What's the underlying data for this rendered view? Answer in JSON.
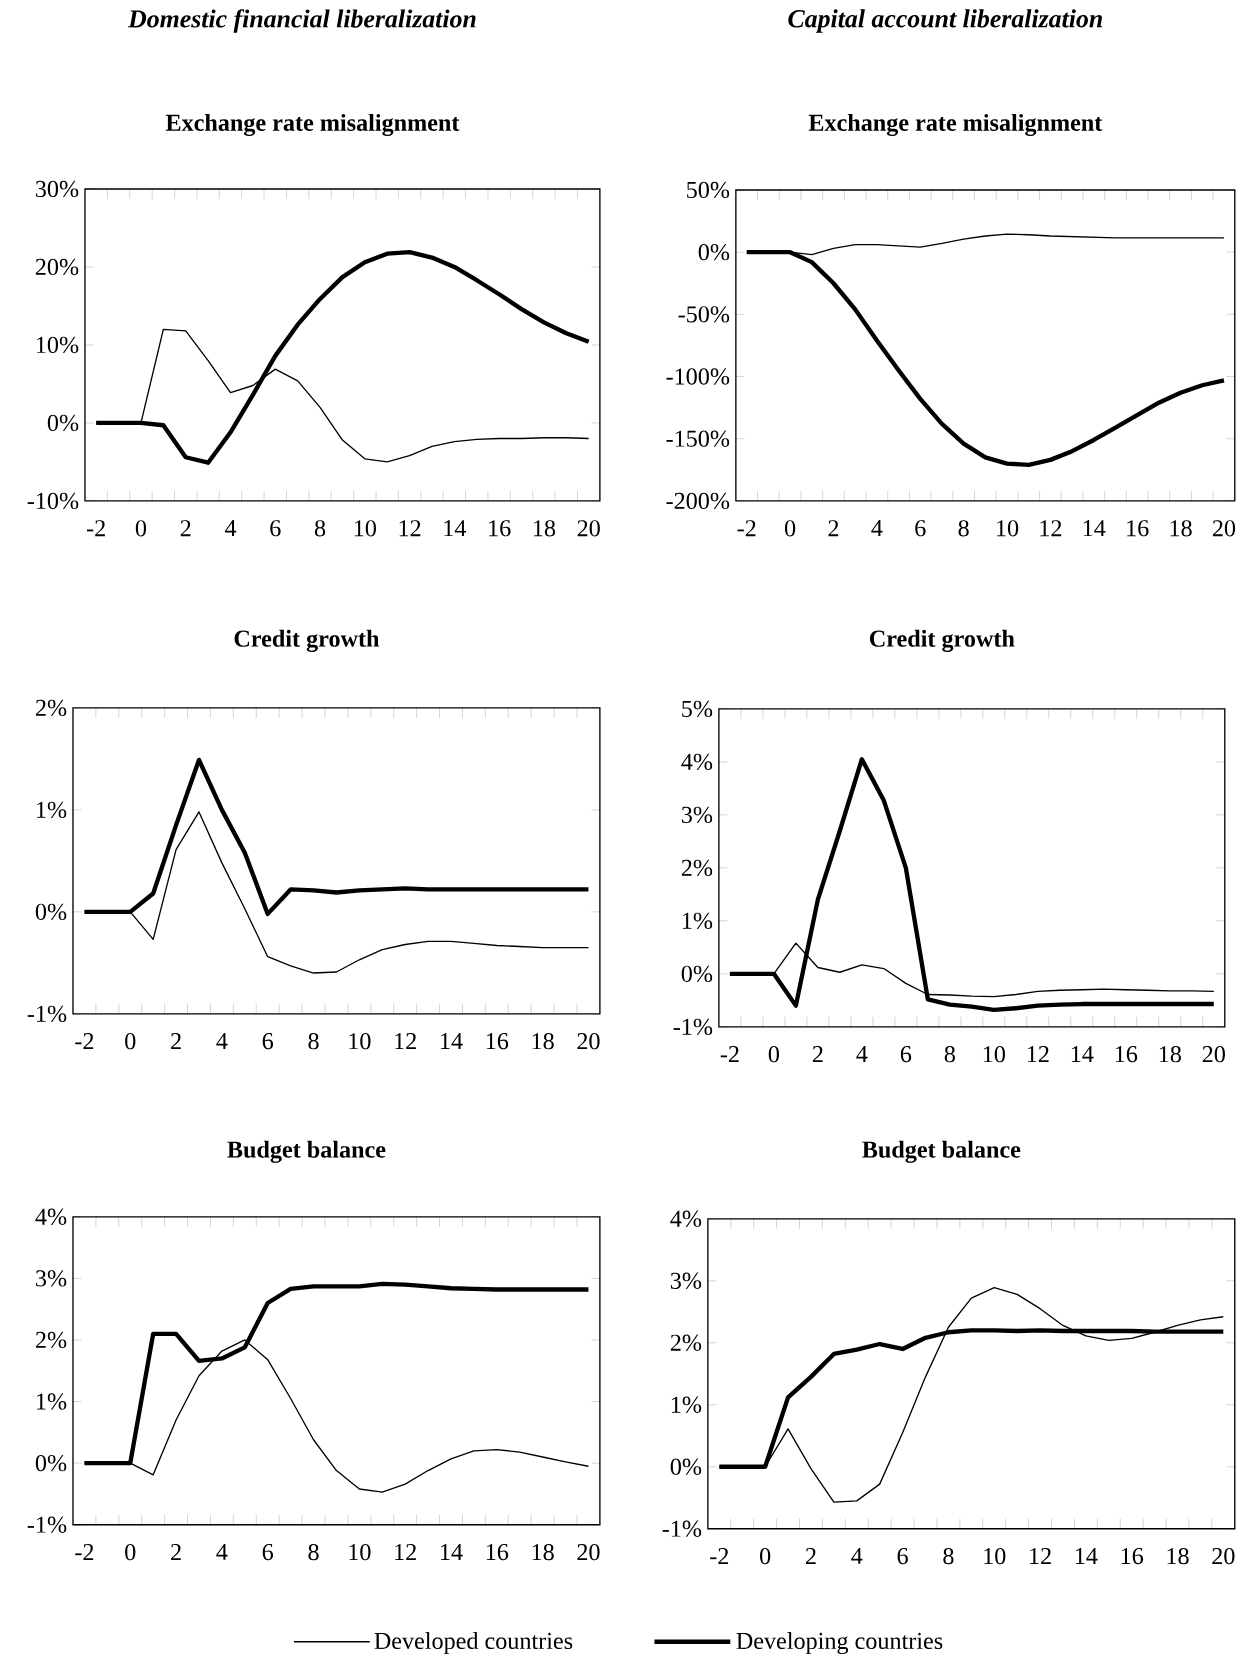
{
  "chart_data": [
    {
      "type": "line",
      "subtitle": "Domestic financial liberalization",
      "title": "Exchange rate misalignment",
      "categories": [
        "-2",
        null,
        "0",
        null,
        "2",
        null,
        "4",
        null,
        "6",
        null,
        "8",
        null,
        "10",
        null,
        "12",
        null,
        "14",
        null,
        "16",
        null,
        "18",
        null,
        "20"
      ],
      "ylim": [
        -10,
        30
      ],
      "yticks": [
        {
          "value": -10,
          "label": "-10%"
        },
        {
          "value": 0,
          "label": "0%"
        },
        {
          "value": 10,
          "label": "10%"
        },
        {
          "value": 20,
          "label": "20%"
        },
        {
          "value": 30,
          "label": "30%"
        }
      ],
      "series": [
        {
          "color": "#000000",
          "values": [
            0,
            0,
            0,
            12.0,
            11.8,
            8.0,
            3.9,
            4.8,
            6.9,
            5.4,
            2.0,
            -2.2,
            -4.6,
            -5.0,
            -4.2,
            -3.0,
            -2.4,
            -2.1,
            -2.0,
            -2.0,
            -1.9,
            -1.9,
            -2.0
          ]
        },
        {
          "color": "#000000",
          "values": [
            0,
            0,
            0,
            -0.3,
            -4.4,
            -5.1,
            -1.2,
            3.6,
            8.6,
            12.6,
            15.9,
            18.7,
            20.6,
            21.7,
            21.9,
            21.2,
            20.0,
            18.3,
            16.5,
            14.6,
            12.9,
            11.5,
            10.4
          ]
        }
      ]
    },
    {
      "type": "line",
      "subtitle": "Capital account liberalization",
      "title": "Exchange rate misalignment",
      "categories": [
        "-2",
        null,
        "0",
        null,
        "2",
        null,
        "4",
        null,
        "6",
        null,
        "8",
        null,
        "10",
        null,
        "12",
        null,
        "14",
        null,
        "16",
        null,
        "18",
        null,
        "20"
      ],
      "ylim": [
        -200,
        50
      ],
      "yticks": [
        {
          "value": -200,
          "label": "-200%"
        },
        {
          "value": -150,
          "label": "-150%"
        },
        {
          "value": -100,
          "label": "-100%"
        },
        {
          "value": -50,
          "label": "-50%"
        },
        {
          "value": 0,
          "label": "0%"
        },
        {
          "value": 50,
          "label": "50%"
        }
      ],
      "series": [
        {
          "color": "#000000",
          "values": [
            0,
            0,
            0,
            -2,
            3,
            6,
            6,
            5,
            4,
            7,
            10.5,
            13,
            14.5,
            14,
            13,
            12.5,
            12,
            11.5,
            11.5,
            11.5,
            11.5,
            11.5,
            11.5
          ]
        },
        {
          "color": "#000000",
          "values": [
            0,
            0,
            0,
            -8,
            -25,
            -46,
            -71,
            -95,
            -118,
            -138,
            -154,
            -165,
            -170,
            -171,
            -167,
            -160,
            -151,
            -141,
            -131,
            -121,
            -113,
            -107,
            -103
          ]
        }
      ]
    },
    {
      "type": "line",
      "title": "Credit growth",
      "categories": [
        "-2",
        null,
        "0",
        null,
        "2",
        null,
        "4",
        null,
        "6",
        null,
        "8",
        null,
        "10",
        null,
        "12",
        null,
        "14",
        null,
        "16",
        null,
        "18",
        null,
        "20"
      ],
      "ylim": [
        -1,
        2
      ],
      "yticks": [
        {
          "value": -1,
          "label": "-1%"
        },
        {
          "value": 0,
          "label": "0%"
        },
        {
          "value": 1,
          "label": "1%"
        },
        {
          "value": 2,
          "label": "2%"
        }
      ],
      "series": [
        {
          "color": "#000000",
          "values": [
            0,
            0,
            0,
            -0.27,
            0.61,
            0.98,
            0.48,
            0.03,
            -0.44,
            -0.53,
            -0.6,
            -0.59,
            -0.47,
            -0.37,
            -0.32,
            -0.29,
            -0.29,
            -0.31,
            -0.33,
            -0.34,
            -0.35,
            -0.35,
            -0.35
          ]
        },
        {
          "color": "#000000",
          "values": [
            0,
            0,
            0,
            0.18,
            0.85,
            1.49,
            1.0,
            0.58,
            -0.02,
            0.22,
            0.21,
            0.19,
            0.21,
            0.22,
            0.23,
            0.22,
            0.22,
            0.22,
            0.22,
            0.22,
            0.22,
            0.22,
            0.22
          ]
        }
      ]
    },
    {
      "type": "line",
      "title": "Credit growth",
      "categories": [
        "-2",
        null,
        "0",
        null,
        "2",
        null,
        "4",
        null,
        "6",
        null,
        "8",
        null,
        "10",
        null,
        "12",
        null,
        "14",
        null,
        "16",
        null,
        "18",
        null,
        "20"
      ],
      "ylim": [
        -1,
        5
      ],
      "yticks": [
        {
          "value": -1,
          "label": "-1%"
        },
        {
          "value": 0,
          "label": "0%"
        },
        {
          "value": 1,
          "label": "1%"
        },
        {
          "value": 2,
          "label": "2%"
        },
        {
          "value": 3,
          "label": "3%"
        },
        {
          "value": 4,
          "label": "4%"
        },
        {
          "value": 5,
          "label": "5%"
        }
      ],
      "series": [
        {
          "color": "#000000",
          "values": [
            0,
            0,
            0,
            0.58,
            0.12,
            0.03,
            0.17,
            0.1,
            -0.18,
            -0.39,
            -0.4,
            -0.42,
            -0.43,
            -0.39,
            -0.33,
            -0.31,
            -0.3,
            -0.29,
            -0.3,
            -0.31,
            -0.32,
            -0.32,
            -0.33
          ]
        },
        {
          "color": "#000000",
          "values": [
            0,
            0,
            0,
            -0.6,
            1.4,
            2.7,
            4.05,
            3.27,
            2.0,
            -0.48,
            -0.58,
            -0.62,
            -0.68,
            -0.65,
            -0.6,
            -0.58,
            -0.57,
            -0.57,
            -0.57,
            -0.57,
            -0.57,
            -0.57,
            -0.57
          ]
        }
      ]
    },
    {
      "type": "line",
      "title": "Budget balance",
      "categories": [
        "-2",
        null,
        "0",
        null,
        "2",
        null,
        "4",
        null,
        "6",
        null,
        "8",
        null,
        "10",
        null,
        "12",
        null,
        "14",
        null,
        "16",
        null,
        "18",
        null,
        "20"
      ],
      "ylim": [
        -1,
        4
      ],
      "yticks": [
        {
          "value": -1,
          "label": "-1%"
        },
        {
          "value": 0,
          "label": "0%"
        },
        {
          "value": 1,
          "label": "1%"
        },
        {
          "value": 2,
          "label": "2%"
        },
        {
          "value": 3,
          "label": "3%"
        },
        {
          "value": 4,
          "label": "4%"
        }
      ],
      "series": [
        {
          "color": "#000000",
          "values": [
            0,
            0,
            0,
            -0.19,
            0.7,
            1.42,
            1.82,
            2.0,
            1.68,
            1.05,
            0.38,
            -0.12,
            -0.42,
            -0.47,
            -0.34,
            -0.12,
            0.07,
            0.2,
            0.22,
            0.18,
            0.1,
            0.02,
            -0.05
          ]
        },
        {
          "color": "#000000",
          "values": [
            0,
            0,
            0,
            2.1,
            2.1,
            1.66,
            1.7,
            1.88,
            2.6,
            2.83,
            2.87,
            2.87,
            2.87,
            2.91,
            2.9,
            2.87,
            2.84,
            2.83,
            2.82,
            2.82,
            2.82,
            2.82,
            2.82
          ]
        }
      ]
    },
    {
      "type": "line",
      "title": "Budget balance",
      "legend": "bottom",
      "categories": [
        "-2",
        null,
        "0",
        null,
        "2",
        null,
        "4",
        null,
        "6",
        null,
        "8",
        null,
        "10",
        null,
        "12",
        null,
        "14",
        null,
        "16",
        null,
        "18",
        null,
        "20"
      ],
      "ylim": [
        -1,
        4
      ],
      "yticks": [
        {
          "value": -1,
          "label": "-1%"
        },
        {
          "value": 0,
          "label": "0%"
        },
        {
          "value": 1,
          "label": "1%"
        },
        {
          "value": 2,
          "label": "2%"
        },
        {
          "value": 3,
          "label": "3%"
        },
        {
          "value": 4,
          "label": "4%"
        }
      ],
      "series": [
        {
          "name": "Developed countries",
          "color": "#000000",
          "values": [
            0,
            0,
            0,
            0.61,
            -0.03,
            -0.57,
            -0.55,
            -0.28,
            0.55,
            1.45,
            2.25,
            2.72,
            2.89,
            2.78,
            2.55,
            2.28,
            2.11,
            2.04,
            2.07,
            2.17,
            2.28,
            2.37,
            2.42
          ]
        },
        {
          "name": "Developing countries",
          "color": "#000000",
          "values": [
            0,
            0,
            0,
            1.12,
            1.45,
            1.82,
            1.89,
            1.98,
            1.9,
            2.08,
            2.17,
            2.2,
            2.2,
            2.19,
            2.2,
            2.19,
            2.19,
            2.19,
            2.19,
            2.18,
            2.18,
            2.18,
            2.18
          ]
        }
      ]
    }
  ]
}
